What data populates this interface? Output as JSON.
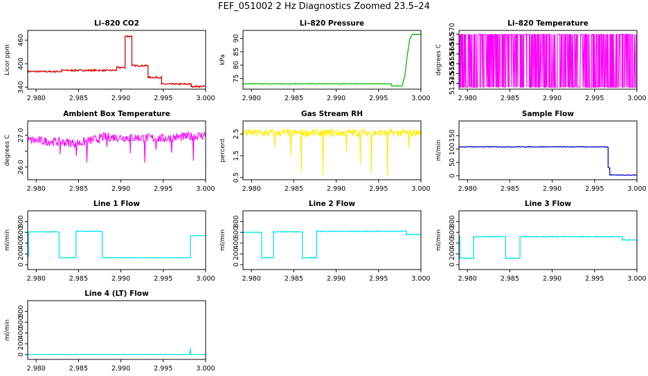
{
  "figure": {
    "title": "FEF_051002  2 Hz Diagnostics Zoomed 23.5–24"
  },
  "chart_data": [
    {
      "type": "line",
      "title": "Li–820 CO2",
      "xlabel": "",
      "ylabel": "Licor ppm",
      "xlim": [
        2.979,
        3.0
      ],
      "ylim": [
        335,
        485
      ],
      "xticks": [
        "2.980",
        "2.985",
        "2.990",
        "2.995",
        "3.000"
      ],
      "xtick_values": [
        2.98,
        2.985,
        2.99,
        2.995,
        3.0
      ],
      "yticks": [
        "340",
        "400",
        "460"
      ],
      "ytick_values": [
        340,
        400,
        460
      ],
      "color": "#dd0000",
      "noise": 2,
      "series": [
        {
          "name": "co2",
          "x": [
            2.979,
            2.983,
            2.983,
            2.9895,
            2.9895,
            2.9905,
            2.9905,
            2.9913,
            2.9913,
            2.9932,
            2.9932,
            2.9948,
            2.9948,
            2.9983,
            2.9983,
            3.0
          ],
          "y": [
            380,
            380,
            383,
            383,
            390,
            390,
            470,
            470,
            395,
            395,
            365,
            365,
            348,
            348,
            342,
            342
          ]
        }
      ]
    },
    {
      "type": "line",
      "title": "Li–820 Pressure",
      "xlabel": "",
      "ylabel": "kPa",
      "xlim": [
        2.979,
        3.0
      ],
      "ylim": [
        71,
        93
      ],
      "xticks": [
        "2.980",
        "2.985",
        "2.990",
        "2.995",
        "3.000"
      ],
      "xtick_values": [
        2.98,
        2.985,
        2.99,
        2.995,
        3.0
      ],
      "yticks": [
        "75",
        "80",
        "85",
        "90"
      ],
      "ytick_values": [
        75,
        80,
        85,
        90
      ],
      "color": "#00bb00",
      "noise": 0.1,
      "series": [
        {
          "name": "pressure",
          "x": [
            2.979,
            2.9965,
            2.9965,
            2.9978,
            2.9981,
            2.9984,
            2.9987,
            2.999,
            3.0
          ],
          "y": [
            73,
            73,
            72.2,
            72.2,
            76,
            84,
            90,
            91.5,
            91.5
          ]
        }
      ]
    },
    {
      "type": "line",
      "title": "Li–820 Temperature",
      "xlabel": "",
      "ylabel": "degrees C",
      "xlim": [
        2.979,
        3.0
      ],
      "ylim": [
        51.542,
        51.572
      ],
      "xticks": [
        "2.980",
        "2.985",
        "2.990",
        "2.995",
        "3.000"
      ],
      "xtick_values": [
        2.98,
        2.985,
        2.99,
        2.995,
        3.0
      ],
      "yticks": [
        "51.545",
        "51.550",
        "51.555",
        "51.560",
        "51.565",
        "51.570"
      ],
      "ytick_values": [
        51.545,
        51.55,
        51.555,
        51.56,
        51.565,
        51.57
      ],
      "color": "#ff00ff",
      "noise": 0,
      "series": [
        {
          "name": "temperature",
          "x": [
            2.979,
            3.0
          ],
          "y": [
            51.57,
            51.543
          ],
          "pattern": "binary-toggle"
        }
      ]
    },
    {
      "type": "line",
      "title": "Ambient Box Temperature",
      "xlabel": "",
      "ylabel": "degrees C",
      "xlim": [
        2.979,
        3.0
      ],
      "ylim": [
        25.6,
        27.45
      ],
      "xticks": [
        "2.980",
        "2.985",
        "2.990",
        "2.995",
        "3.000"
      ],
      "xtick_values": [
        2.98,
        2.985,
        2.99,
        2.995,
        3.0
      ],
      "yticks": [
        "26.0",
        "",
        "27.0"
      ],
      "ytick_values": [
        26.0,
        26.5,
        27.0
      ],
      "color": "#ff00ff",
      "noise": 0.14,
      "series": [
        {
          "name": "box_temp",
          "x": [
            2.979,
            2.985,
            2.9875,
            2.9875,
            2.995,
            3.0
          ],
          "y": [
            26.85,
            26.75,
            26.9,
            26.95,
            26.9,
            27.0
          ]
        }
      ]
    },
    {
      "type": "line",
      "title": "Gas Stream RH",
      "xlabel": "",
      "ylabel": "percent",
      "xlim": [
        2.979,
        3.0
      ],
      "ylim": [
        0.4,
        3.1
      ],
      "xticks": [
        "2.980",
        "2.985",
        "2.990",
        "2.995",
        "3.000"
      ],
      "xtick_values": [
        2.98,
        2.985,
        2.99,
        2.995,
        3.0
      ],
      "yticks": [
        "0.5",
        "1.5",
        "2.5"
      ],
      "ytick_values": [
        0.5,
        1.5,
        2.5
      ],
      "color": "#ffee00",
      "noise": 0.18,
      "series": [
        {
          "name": "rh",
          "x": [
            2.979,
            3.0
          ],
          "y": [
            2.55,
            2.55
          ]
        }
      ]
    },
    {
      "type": "line",
      "title": "Sample Flow",
      "xlabel": "",
      "ylabel": "ml/min",
      "xlim": [
        2.979,
        3.0
      ],
      "ylim": [
        -15,
        205
      ],
      "xticks": [
        "2.980",
        "2.985",
        "2.990",
        "2.995",
        "3.000"
      ],
      "xtick_values": [
        2.98,
        2.985,
        2.99,
        2.995,
        3.0
      ],
      "yticks": [
        "0",
        "50",
        "100",
        "150"
      ],
      "ytick_values": [
        0,
        50,
        100,
        150
      ],
      "color": "#0000cc",
      "noise": 1.2,
      "series": [
        {
          "name": "sample_flow",
          "x": [
            2.979,
            2.9966,
            2.9966,
            2.9968,
            2.9968,
            3.0
          ],
          "y": [
            108,
            108,
            30,
            30,
            3,
            2
          ]
        }
      ]
    },
    {
      "type": "line",
      "title": "Line 1 Flow",
      "xlabel": "",
      "ylabel": "ml/min",
      "xlim": [
        2.979,
        3.0
      ],
      "ylim": [
        -90,
        1000
      ],
      "xticks": [
        "2.980",
        "2.985",
        "2.990",
        "2.995",
        "3.000"
      ],
      "xtick_values": [
        2.98,
        2.985,
        2.99,
        2.995,
        3.0
      ],
      "yticks": [
        "0",
        "200",
        "400",
        "600",
        "800"
      ],
      "ytick_values": [
        0,
        200,
        400,
        600,
        800
      ],
      "color": "#00e5ee",
      "noise": 6,
      "series": [
        {
          "name": "line1",
          "x": [
            2.979,
            2.9791,
            2.9791,
            2.9827,
            2.9827,
            2.9847,
            2.9847,
            2.9878,
            2.9878,
            2.9982,
            2.9982,
            3.0
          ],
          "y": [
            150,
            150,
            610,
            610,
            130,
            130,
            620,
            620,
            130,
            130,
            540,
            540
          ]
        }
      ]
    },
    {
      "type": "line",
      "title": "Line 2 Flow",
      "xlabel": "",
      "ylabel": "ml/min",
      "xlim": [
        2.979,
        3.0
      ],
      "ylim": [
        -90,
        1000
      ],
      "xticks": [
        "2.980",
        "2.985",
        "2.990",
        "2.995",
        "3.000"
      ],
      "xtick_values": [
        2.98,
        2.985,
        2.99,
        2.995,
        3.0
      ],
      "yticks": [
        "0",
        "200",
        "400",
        "600",
        "800"
      ],
      "ytick_values": [
        0,
        200,
        400,
        600,
        800
      ],
      "color": "#00e5ee",
      "noise": 7,
      "series": [
        {
          "name": "line2",
          "x": [
            2.979,
            2.9812,
            2.9812,
            2.9826,
            2.9826,
            2.986,
            2.986,
            2.9877,
            2.9877,
            2.9983,
            2.9983,
            3.0
          ],
          "y": [
            600,
            600,
            130,
            130,
            610,
            610,
            130,
            130,
            620,
            620,
            560,
            560
          ]
        }
      ]
    },
    {
      "type": "line",
      "title": "Line 3 Flow",
      "xlabel": "",
      "ylabel": "ml/min",
      "xlim": [
        2.979,
        3.0
      ],
      "ylim": [
        -90,
        1000
      ],
      "xticks": [
        "2.980",
        "2.985",
        "2.990",
        "2.995",
        "3.000"
      ],
      "xtick_values": [
        2.98,
        2.985,
        2.99,
        2.995,
        3.0
      ],
      "yticks": [
        "0",
        "200",
        "400",
        "600",
        "800"
      ],
      "ytick_values": [
        0,
        200,
        400,
        600,
        800
      ],
      "color": "#00e5ee",
      "noise": 7,
      "series": [
        {
          "name": "line3",
          "x": [
            2.979,
            2.9791,
            2.9791,
            2.9807,
            2.9807,
            2.9845,
            2.9845,
            2.9862,
            2.9862,
            2.9983,
            2.9983,
            3.0
          ],
          "y": [
            520,
            520,
            120,
            120,
            520,
            520,
            120,
            120,
            520,
            520,
            460,
            460
          ]
        }
      ]
    },
    {
      "type": "line",
      "title": "Line 4 (LT) Flow",
      "xlabel": "",
      "ylabel": "ml/min",
      "xlim": [
        2.979,
        3.0
      ],
      "ylim": [
        -90,
        1000
      ],
      "xticks": [
        "2.980",
        "2.985",
        "2.990",
        "2.995",
        "3.000"
      ],
      "xtick_values": [
        2.98,
        2.985,
        2.99,
        2.995,
        3.0
      ],
      "yticks": [
        "0",
        "200",
        "400",
        "600",
        "800"
      ],
      "ytick_values": [
        0,
        200,
        400,
        600,
        800
      ],
      "color": "#00e5ee",
      "noise": 1,
      "series": [
        {
          "name": "line4",
          "x": [
            2.979,
            2.99815,
            2.9982,
            2.99825,
            3.0
          ],
          "y": [
            2,
            2,
            120,
            2,
            2
          ]
        }
      ]
    }
  ]
}
